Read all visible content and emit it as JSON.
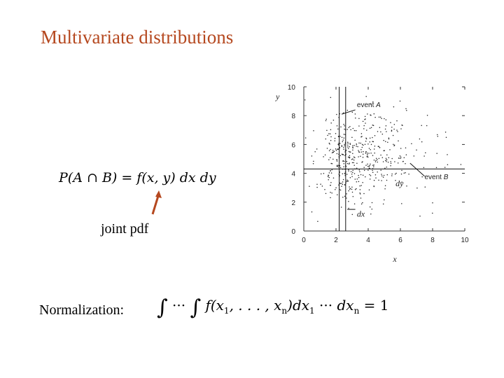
{
  "title": "Multivariate distributions",
  "joint_formula": {
    "prefix": "P(A",
    "cap": "∩",
    "mid": "B) = f(x, y) dx dy"
  },
  "joint_label": "joint pdf",
  "normalization_label": "Normalization:",
  "normalization_formula": {
    "integral1": "∫",
    "dots1": "···",
    "integral2": "∫",
    "body": "f(x",
    "sub1": "1",
    "sep": ", . . . , x",
    "subn": "n",
    "dx1": ")dx",
    "sub1b": "1",
    "dots2": "···",
    "dxn": "dx",
    "subn2": "n",
    "equals": " = 1"
  },
  "chart_data": {
    "type": "scatter",
    "title": "",
    "xlabel": "x",
    "ylabel": "y",
    "xlim": [
      0,
      10
    ],
    "ylim": [
      0,
      10
    ],
    "x_ticks": [
      "0",
      "2",
      "4",
      "6",
      "8",
      "10"
    ],
    "y_ticks": [
      "0",
      "2",
      "4",
      "6",
      "8",
      "10"
    ],
    "grid": false,
    "points_description_seed": 7,
    "cloud": {
      "n_points": 520,
      "center": [
        2.0,
        4.8
      ],
      "spread_x": 2.6,
      "spread_y": 1.6
    },
    "event_A_x_band": [
      2.2,
      2.6
    ],
    "event_B_y_band": [
      4.3,
      4.3
    ],
    "annotations": {
      "event_a_text": "event ",
      "event_a_var": "A",
      "event_b_text": "event ",
      "event_b_var": "B",
      "dy_label": "dy",
      "dx_label": "dx"
    }
  },
  "colors": {
    "title": "#b5481f",
    "arrow": "#b5481f",
    "text": "#000000"
  }
}
